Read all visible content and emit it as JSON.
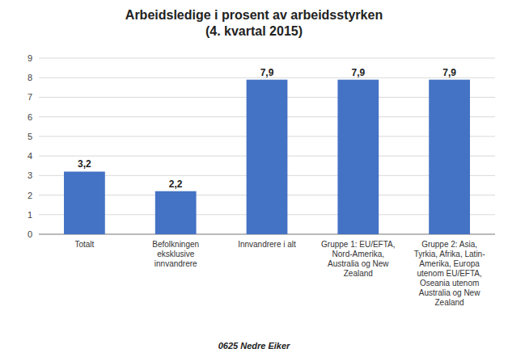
{
  "chart_data": {
    "type": "bar",
    "title": "Arbeidsledige i prosent av arbeidsstyrken\n(4. kvartal 2015)",
    "categories": [
      "Totalt",
      "Befolkningen\neksklusive\ninnvandrere",
      "Innvandrere i alt",
      "Gruppe 1: EU/EFTA,\nNord-Amerika,\nAustralia og New\nZealand",
      "Gruppe 2: Asia,\nTyrkia, Afrika, Latin-\nAmerika, Europa\nutenom EU/EFTA,\nOseania utenom\nAustralia og New\nZealand"
    ],
    "values": [
      3.2,
      2.2,
      7.9,
      7.9,
      7.9
    ],
    "value_labels": [
      "3,2",
      "2,2",
      "7,9",
      "7,9",
      "7,9"
    ],
    "data_labels": true,
    "color": "#4472C4",
    "ylim": [
      0,
      9
    ],
    "yticks": [
      0,
      1,
      2,
      3,
      4,
      5,
      6,
      7,
      8,
      9
    ],
    "grid": true,
    "xlabel": "0625 Nedre Eiker"
  }
}
